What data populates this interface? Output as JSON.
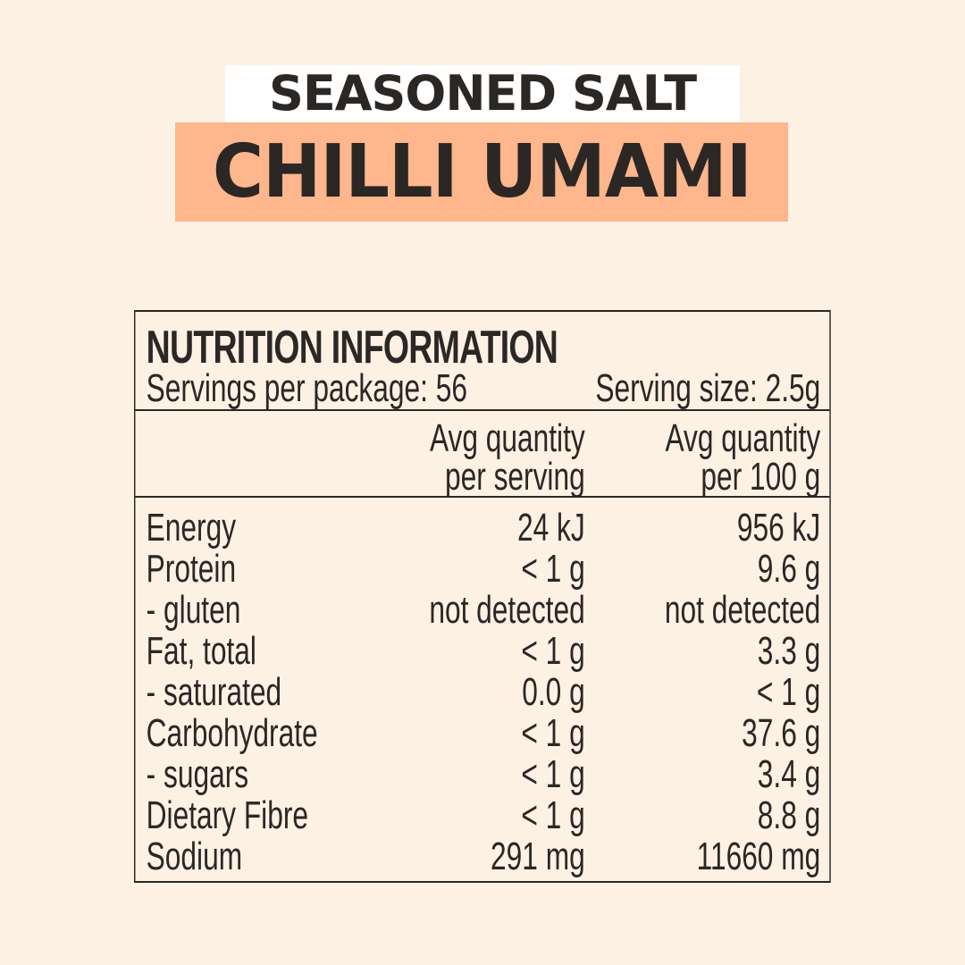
{
  "header": {
    "subtitle": "SEASONED SALT",
    "title": "CHILLI UMAMI"
  },
  "colors": {
    "background": "#fdf1e4",
    "accent": "#feb68c",
    "text": "#2b2725",
    "subtitle_bg": "#ffffff"
  },
  "nutrition": {
    "title": "NUTRITION INFORMATION",
    "servings_per_package": "Servings per package: 56",
    "serving_size": "Serving size: 2.5g",
    "columns": [
      {
        "line1": "Avg quantity",
        "line2": "per serving"
      },
      {
        "line1": "Avg quantity",
        "line2": "per 100 g"
      }
    ],
    "rows": [
      {
        "label": "Energy",
        "per_serving": "24 kJ",
        "per_100g": "956 kJ"
      },
      {
        "label": "Protein",
        "per_serving": "< 1 g",
        "per_100g": "9.6 g"
      },
      {
        "label": "- gluten",
        "per_serving": "not detected",
        "per_100g": "not detected"
      },
      {
        "label": "Fat, total",
        "per_serving": "< 1 g",
        "per_100g": "3.3 g"
      },
      {
        "label": "- saturated",
        "per_serving": "0.0 g",
        "per_100g": "< 1 g"
      },
      {
        "label": "Carbohydrate",
        "per_serving": "< 1 g",
        "per_100g": "37.6 g"
      },
      {
        "label": "- sugars",
        "per_serving": "< 1 g",
        "per_100g": "3.4 g"
      },
      {
        "label": "Dietary Fibre",
        "per_serving": "< 1 g",
        "per_100g": "8.8 g"
      },
      {
        "label": "Sodium",
        "per_serving": "291 mg",
        "per_100g": "11660 mg"
      }
    ]
  }
}
